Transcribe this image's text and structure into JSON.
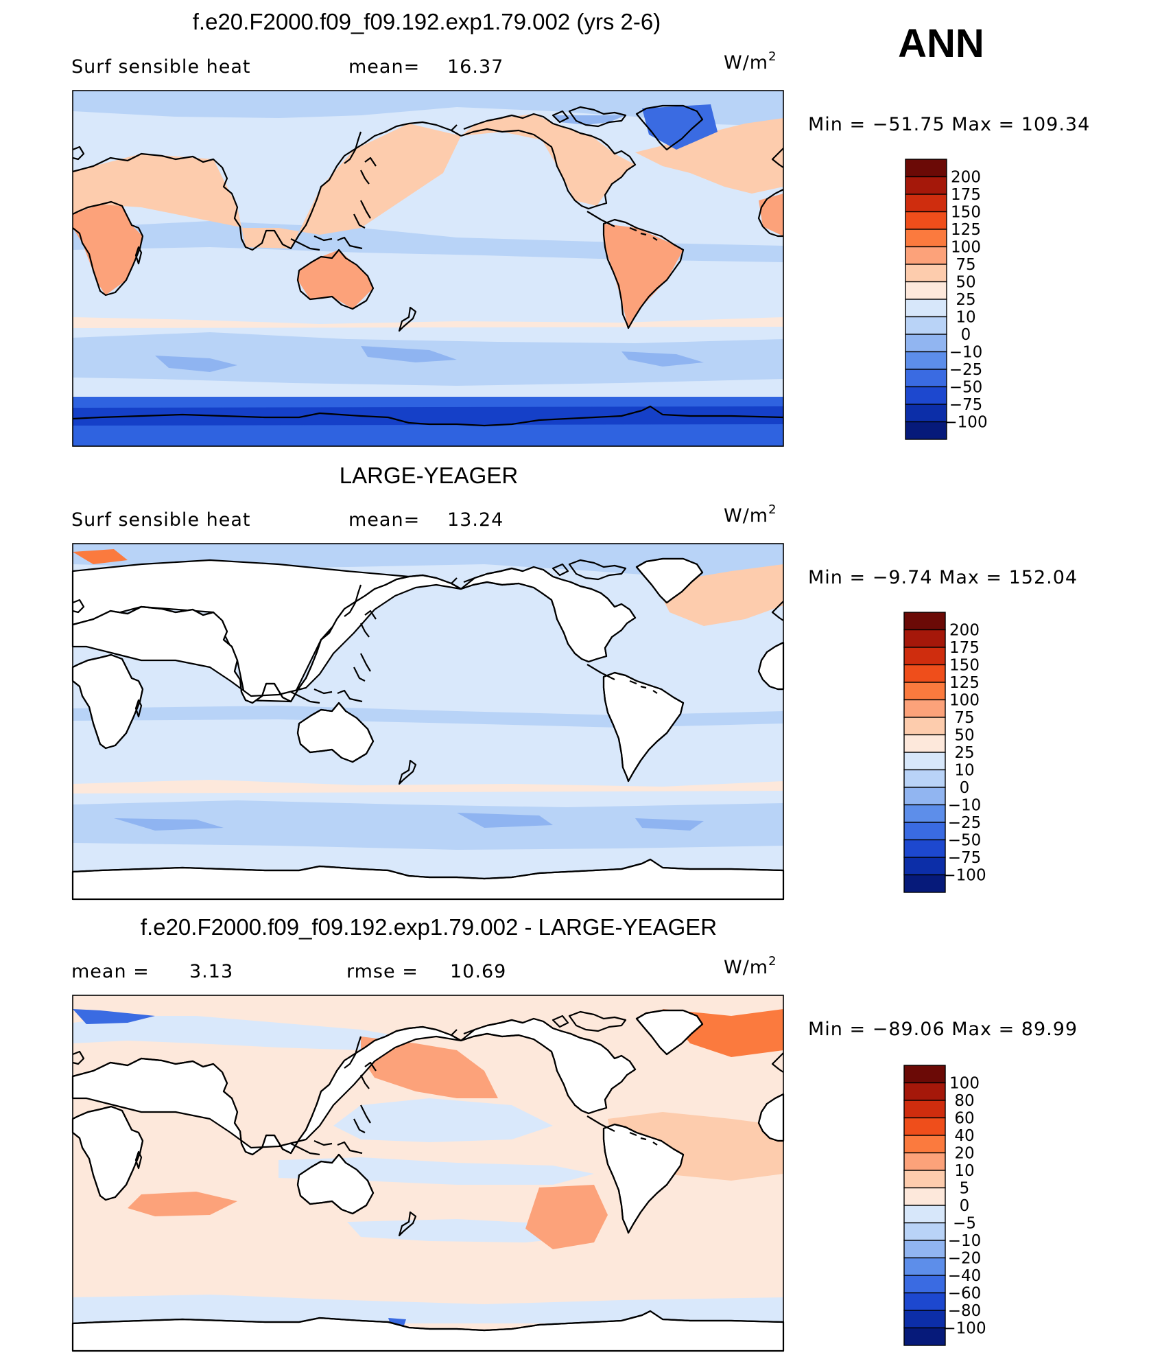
{
  "season": "ANN",
  "units_base": "W/m",
  "units_exp": "2",
  "colors": {
    "c200": "#8a0f07",
    "c175": "#b51f0b",
    "c150": "#d93a12",
    "c125": "#f25f25",
    "c100": "#fb8045",
    "c75": "#fca77b",
    "c50": "#fdd0b0",
    "c25": "#fdeee3",
    "c10": "#d8e8fb",
    "c0": "#b7d2f7",
    "cm10": "#8fb4f1",
    "cm25": "#5a8ce9",
    "cm50": "#2f63e0",
    "cm75": "#1540c8",
    "cm100": "#0b2aa3",
    "cm_deep": "#06188a"
  },
  "panels": [
    {
      "title": "f.e20.F2000.f09_f09.192.exp1.79.002 (yrs 2-6)",
      "left_label": "Surf  sensible  heat",
      "stat1_label": "mean=",
      "stat1_value": "16.37",
      "minmax": "Min  =  −51.75  Max  =  109.34",
      "scale": {
        "levels": [
          "200",
          "175",
          "150",
          "125",
          "100",
          "75",
          "50",
          "25",
          "10",
          "0",
          "−10",
          "−25",
          "−50",
          "−75",
          "−100"
        ],
        "colors": [
          "#6b0a06",
          "#a5180a",
          "#cf2d0e",
          "#ef4e1b",
          "#fb7a3e",
          "#fca27a",
          "#fdccad",
          "#fde8db",
          "#d7e7fa",
          "#b9d3f7",
          "#91b5f1",
          "#5d8eea",
          "#3a6be2",
          "#1d48cf",
          "#0c2ea8",
          "#061a7a"
        ]
      }
    },
    {
      "title": "LARGE-YEAGER",
      "left_label": "Surf  sensible  heat",
      "stat1_label": "mean=",
      "stat1_value": "13.24",
      "minmax": "Min  =    −9.74  Max  =  152.04",
      "scale": {
        "levels": [
          "200",
          "175",
          "150",
          "125",
          "100",
          "75",
          "50",
          "25",
          "10",
          "0",
          "−10",
          "−25",
          "−50",
          "−75",
          "−100"
        ],
        "colors": [
          "#6b0a06",
          "#a5180a",
          "#cf2d0e",
          "#ef4e1b",
          "#fb7a3e",
          "#fca27a",
          "#fdccad",
          "#fde8db",
          "#d7e7fa",
          "#b9d3f7",
          "#91b5f1",
          "#5d8eea",
          "#3a6be2",
          "#1d48cf",
          "#0c2ea8",
          "#061a7a"
        ]
      }
    },
    {
      "title": "f.e20.F2000.f09_f09.192.exp1.79.002 - LARGE-YEAGER",
      "left_label": "mean  =",
      "left_value": "3.13",
      "stat1_label": "rmse  =",
      "stat1_value": "10.69",
      "minmax": "Min  =  −89.06  Max  =    89.99",
      "scale": {
        "levels": [
          "100",
          "80",
          "60",
          "40",
          "20",
          "10",
          "5",
          "0",
          "−5",
          "−10",
          "−20",
          "−40",
          "−60",
          "−80",
          "−100"
        ],
        "colors": [
          "#6b0a06",
          "#a5180a",
          "#cf2d0e",
          "#ef4e1b",
          "#fb7a3e",
          "#fca27a",
          "#fdccad",
          "#fde8db",
          "#d7e7fa",
          "#b9d3f7",
          "#91b5f1",
          "#5d8eea",
          "#3a6be2",
          "#1d48cf",
          "#0c2ea8",
          "#061a7a"
        ]
      }
    }
  ]
}
